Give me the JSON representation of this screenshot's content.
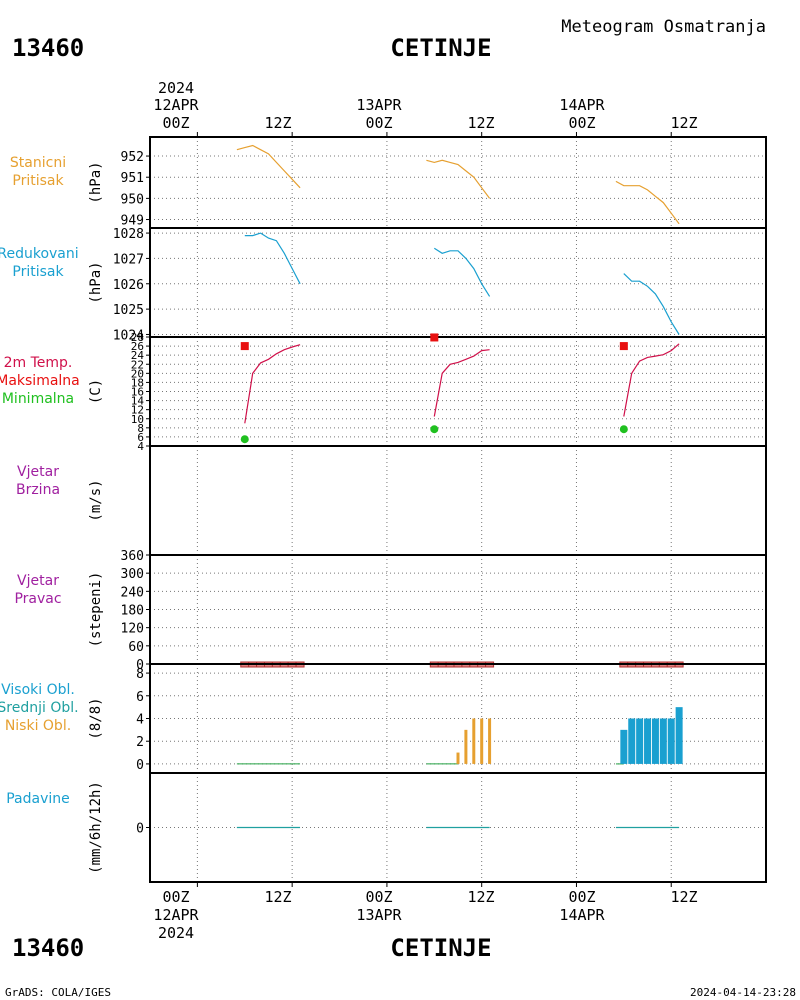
{
  "header": {
    "station_id": "13460",
    "station_name": "CETINJE",
    "subtitle": "Meteogram Osmatranja"
  },
  "footer": {
    "credit": "GrADS: COLA/IGES",
    "timestamp": "2024-04-14-23:28"
  },
  "time_axis": {
    "top_year": "2024",
    "bottom_year": "2024",
    "date_labels": [
      "12APR",
      "13APR",
      "14APR"
    ],
    "hour_labels": [
      "00Z",
      "12Z"
    ]
  },
  "panels": {
    "p1": {
      "label_lines": [
        "Stanicni",
        "Pritisak"
      ],
      "unit": "(hPa)",
      "label_color": "#e6a030"
    },
    "p2": {
      "label_lines": [
        "Redukovani",
        "Pritisak"
      ],
      "unit": "(hPa)",
      "label_color": "#1aa0d0"
    },
    "p3": {
      "label_lines": [
        "2m Temp.",
        "Maksimalna",
        "Minimalna"
      ],
      "unit": "(C)",
      "label_colors": [
        "#d0104a",
        "#e81010",
        "#20c020"
      ]
    },
    "p4": {
      "label_lines": [
        "Vjetar",
        "Brzina"
      ],
      "unit": "(m/s)",
      "label_color": "#a020a0"
    },
    "p5": {
      "label_lines": [
        "Vjetar",
        "Pravac"
      ],
      "unit": "(stepeni)",
      "label_color": "#a020a0"
    },
    "p6": {
      "label_lines": [
        "Visoki Obl.",
        "Srednji Obl.",
        "Niski Obl."
      ],
      "unit": "(8/8)",
      "label_colors": [
        "#1aa0d0",
        "#20a0a0",
        "#e6a030"
      ]
    },
    "p7": {
      "label_lines": [
        "Padavine"
      ],
      "unit": "(mm/6h/12h)",
      "label_color": "#1aa0d0"
    }
  },
  "chart_data": {
    "type": "line",
    "x_unit": "hours since 2024-04-12 00Z",
    "xlim": [
      -6,
      72
    ],
    "panels": [
      {
        "name": "station_pressure",
        "color": "#e6a030",
        "ylim": [
          948.6,
          952.9
        ],
        "yticks": [
          949,
          950,
          951,
          952
        ],
        "series": [
          {
            "x": [
              5,
              6,
              7,
              8,
              9,
              10,
              11,
              12,
              13
            ],
            "y": [
              952.3,
              952.4,
              952.5,
              952.3,
              952.1,
              951.7,
              951.3,
              950.9,
              950.5
            ]
          },
          {
            "x": [
              29,
              30,
              31,
              32,
              33,
              34,
              35,
              36,
              37
            ],
            "y": [
              951.8,
              951.7,
              951.8,
              951.7,
              951.6,
              951.3,
              951.0,
              950.5,
              950.0
            ]
          },
          {
            "x": [
              53,
              54,
              55,
              56,
              57,
              58,
              59,
              60,
              61
            ],
            "y": [
              950.8,
              950.6,
              950.6,
              950.6,
              950.4,
              950.1,
              949.8,
              949.3,
              948.8
            ]
          }
        ]
      },
      {
        "name": "reduced_pressure",
        "color": "#1aa0d0",
        "ylim": [
          1023.9,
          1028.2
        ],
        "yticks": [
          1024,
          1025,
          1026,
          1027,
          1028
        ],
        "series": [
          {
            "x": [
              6,
              7,
              8,
              9,
              10,
              11,
              12,
              13
            ],
            "y": [
              1027.9,
              1027.9,
              1028.0,
              1027.8,
              1027.7,
              1027.2,
              1026.6,
              1026.0
            ]
          },
          {
            "x": [
              30,
              31,
              32,
              33,
              34,
              35,
              36,
              37
            ],
            "y": [
              1027.4,
              1027.2,
              1027.3,
              1027.3,
              1027.0,
              1026.6,
              1026.0,
              1025.5
            ]
          },
          {
            "x": [
              54,
              55,
              56,
              57,
              58,
              59,
              60,
              61
            ],
            "y": [
              1026.4,
              1026.1,
              1026.1,
              1025.9,
              1025.6,
              1025.1,
              1024.5,
              1024.0
            ]
          }
        ]
      },
      {
        "name": "temperature_2m",
        "color": "#d0104a",
        "ylim": [
          4,
          28
        ],
        "yticks": [
          4,
          6,
          8,
          10,
          12,
          14,
          16,
          18,
          20,
          22,
          24,
          26,
          28
        ],
        "series": [
          {
            "x": [
              6,
              7,
              8,
              9,
              10,
              11,
              12,
              13
            ],
            "y": [
              9,
              20,
              22.3,
              23.1,
              24.3,
              25.2,
              25.8,
              26.3
            ]
          },
          {
            "x": [
              30,
              31,
              32,
              33,
              34,
              35,
              36,
              37
            ],
            "y": [
              10.5,
              20,
              22,
              22.4,
              23.1,
              23.8,
              25,
              25.2
            ]
          },
          {
            "x": [
              54,
              55,
              56,
              57,
              58,
              59,
              60,
              61
            ],
            "y": [
              10.5,
              20,
              22.7,
              23.5,
              23.8,
              24.1,
              25,
              26.5
            ]
          }
        ],
        "maxima": {
          "color": "#e81010",
          "x": [
            6,
            30,
            54
          ],
          "y": [
            26,
            27.9,
            26
          ]
        },
        "minima": {
          "color": "#20c020",
          "x": [
            6,
            30,
            54
          ],
          "y": [
            5.5,
            7.7,
            7.7
          ]
        }
      },
      {
        "name": "wind_speed",
        "ylim": [
          0,
          10
        ],
        "yticks": [],
        "series": []
      },
      {
        "name": "wind_direction",
        "ylim": [
          0,
          360
        ],
        "yticks": [
          0,
          60,
          120,
          180,
          240,
          300,
          360
        ],
        "markers": {
          "color": "#b03030",
          "fill": "#e08080",
          "x": [
            6,
            7,
            8,
            9,
            10,
            11,
            12,
            13,
            30,
            31,
            32,
            33,
            34,
            35,
            36,
            37,
            54,
            55,
            56,
            57,
            58,
            59,
            60,
            61
          ],
          "value": 0
        }
      },
      {
        "name": "cloud_cover",
        "ylim": [
          -0.8,
          8.8
        ],
        "yticks": [
          0,
          2,
          4,
          6,
          8
        ],
        "low_color": "#e6a030",
        "high_color": "#1aa0d0",
        "low_bars": {
          "x": [
            33,
            34,
            35,
            36,
            37
          ],
          "y": [
            1,
            3,
            4,
            4,
            4
          ]
        },
        "high_bars": {
          "x": [
            54,
            55,
            56,
            57,
            58,
            59,
            60,
            61
          ],
          "y": [
            3,
            4,
            4,
            4,
            4,
            4,
            4,
            5
          ]
        },
        "zero_ranges": [
          [
            5,
            13
          ],
          [
            29,
            33
          ],
          [
            53,
            54
          ]
        ]
      },
      {
        "name": "precipitation",
        "ylim": [
          -5,
          5
        ],
        "yticks": [
          0
        ],
        "color": "#20a0a0",
        "zero_ranges": [
          [
            5,
            13
          ],
          [
            29,
            37
          ],
          [
            53,
            61
          ]
        ]
      }
    ]
  }
}
